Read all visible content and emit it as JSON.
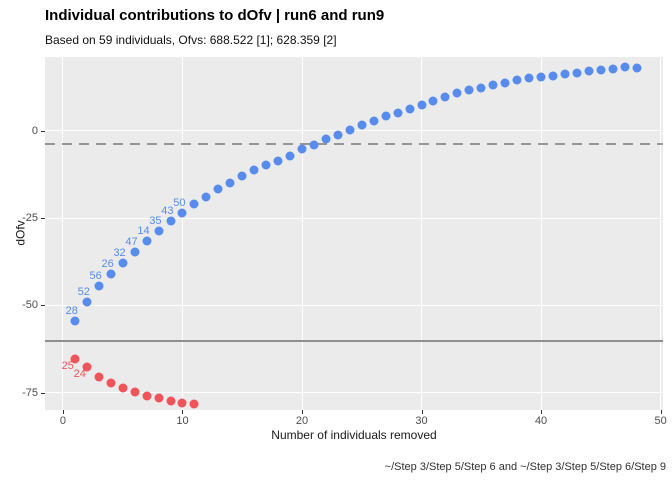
{
  "chart_data": {
    "type": "scatter",
    "title": "Individual contributions to dOfv | run6 and run9",
    "subtitle": "Based on 59 individuals, Ofvs: 688.522 [1]; 628.359 [2]",
    "xlabel": "Number of individuals removed",
    "ylabel": "dOfv",
    "caption": "~/Step 3/Step 5/Step 6 and ~/Step 3/Step 5/Step 6/Step 9",
    "n_individuals": 59,
    "ofv_run6": 688.522,
    "ofv_run9": 628.359,
    "xlim": [
      -1.5,
      50.2
    ],
    "ylim": [
      -80,
      21.2
    ],
    "xticks": [
      0,
      10,
      20,
      30,
      40,
      50
    ],
    "yticks": [
      0,
      -25,
      -50,
      -75
    ],
    "grid": "major-only-white-on-gray",
    "legend": "none",
    "panel_color": "#ebebeb",
    "reference_lines": [
      {
        "name": "significance-line",
        "style": "dashed",
        "y": -3.84,
        "color": "#969696"
      },
      {
        "name": "total-dofv-line",
        "style": "solid",
        "y": -60.163,
        "color": "#8f8f8f"
      }
    ],
    "series": [
      {
        "key": "blue",
        "color": "#578bec",
        "label_dx": 3,
        "label_dy": -4,
        "label_anchor": "above-left",
        "x": [
          1,
          2,
          3,
          4,
          5,
          6,
          7,
          8,
          9,
          10,
          11,
          12,
          13,
          14,
          15,
          16,
          17,
          18,
          19,
          20,
          21,
          22,
          23,
          24,
          25,
          26,
          27,
          28,
          29,
          30,
          31,
          32,
          33,
          34,
          35,
          36,
          37,
          38,
          39,
          40,
          41,
          42,
          43,
          44,
          45,
          46,
          47,
          48
        ],
        "y": [
          -54.5,
          -49.1,
          -44.5,
          -41.1,
          -37.8,
          -34.8,
          -31.6,
          -28.8,
          -25.9,
          -23.4,
          -20.9,
          -18.8,
          -16.7,
          -14.8,
          -12.9,
          -11.3,
          -9.8,
          -8.7,
          -7.3,
          -5.2,
          -4.0,
          -2.4,
          -1.1,
          0.3,
          1.7,
          2.9,
          4.3,
          5.2,
          6.2,
          7.5,
          8.6,
          9.8,
          10.8,
          11.7,
          12.4,
          13.1,
          13.8,
          14.6,
          15.1,
          15.5,
          15.8,
          16.2,
          16.7,
          17.1,
          17.4,
          17.9,
          18.4,
          18.1
        ],
        "labels": [
          "28",
          "52",
          "56",
          "26",
          "32",
          "47",
          "14",
          "35",
          "43",
          "50",
          null,
          null,
          null,
          null,
          null,
          null,
          null,
          null,
          null,
          null,
          null,
          null,
          null,
          null,
          null,
          null,
          null,
          null,
          null,
          null,
          null,
          null,
          null,
          null,
          null,
          null,
          null,
          null,
          null,
          null,
          null,
          null,
          null,
          null,
          null,
          null,
          null,
          null
        ]
      },
      {
        "key": "red",
        "color": "#f0545a",
        "label_dx": -1,
        "label_dy": 1,
        "label_anchor": "below-left",
        "x": [
          1,
          2,
          3,
          4,
          5,
          6,
          7,
          8,
          9,
          10,
          11
        ],
        "y": [
          -65.4,
          -67.8,
          -70.5,
          -72.4,
          -73.8,
          -74.9,
          -75.9,
          -76.7,
          -77.4,
          -78.0,
          -78.3
        ],
        "labels": [
          "25",
          "24",
          null,
          null,
          null,
          null,
          null,
          null,
          null,
          null,
          null
        ]
      }
    ]
  }
}
